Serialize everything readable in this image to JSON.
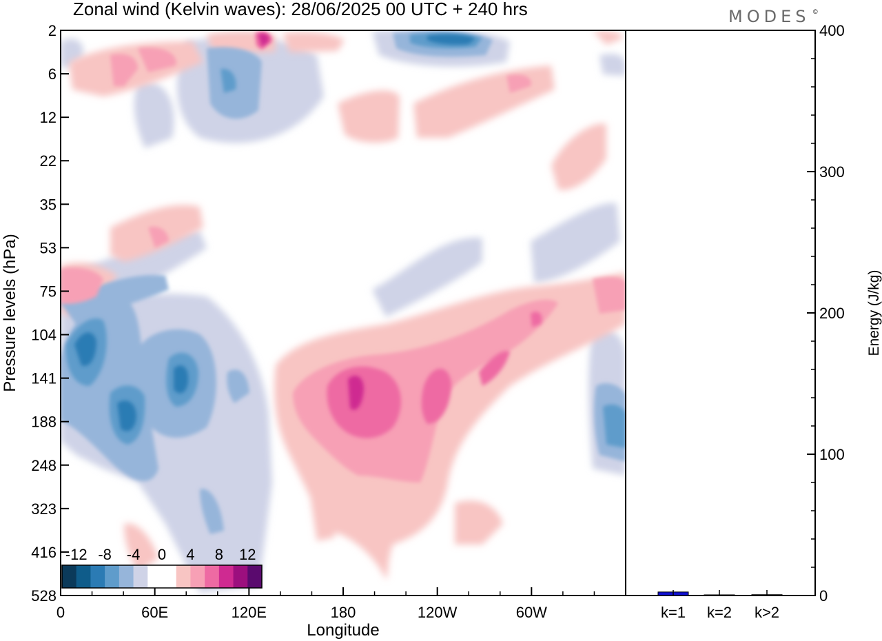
{
  "chart_data": [
    {
      "type": "heatmap",
      "title": "Zonal wind (Kelvin waves):  28/06/2025  00 UTC  + 240 hrs",
      "xlabel": "Longitude",
      "ylabel": "Pressure levels (hPa)",
      "x_ticks": [
        "0",
        "60E",
        "120E",
        "180",
        "120W",
        "60W"
      ],
      "x_tick_degrees": [
        0,
        60,
        120,
        180,
        240,
        300
      ],
      "xlim": [
        0,
        360
      ],
      "y_ticks": [
        "2",
        "6",
        "12",
        "22",
        "35",
        "53",
        "75",
        "104",
        "141",
        "188",
        "248",
        "323",
        "416",
        "528"
      ],
      "colorbar": {
        "labels": [
          "-12",
          "-8",
          "-4",
          "0",
          "4",
          "8",
          "12"
        ],
        "colors": [
          "#0b3a5a",
          "#0f5c8a",
          "#2b7bb4",
          "#5f9ccb",
          "#96b5da",
          "#cfd3e7",
          "#ffffff",
          "#ffffff",
          "#f8c5c3",
          "#f7a0b5",
          "#ee6aa3",
          "#cf2a91",
          "#9c0f7e",
          "#5a0a6e"
        ]
      },
      "features": [
        {
          "lon": 185,
          "level": "141",
          "value": 10
        },
        {
          "lon": 240,
          "level": "141",
          "value": 8
        },
        {
          "lon": 280,
          "level": "104",
          "value": 8
        },
        {
          "lon": 15,
          "level": "104",
          "value": -12
        },
        {
          "lon": 37,
          "level": "141",
          "value": -12
        },
        {
          "lon": 78,
          "level": "141",
          "value": -12
        },
        {
          "lon": 352,
          "level": "188",
          "value": -8
        },
        {
          "lon": 110,
          "level": "12",
          "value": -8
        },
        {
          "lon": 255,
          "level": "2",
          "value": -12
        },
        {
          "lon": 125,
          "level": "2",
          "value": 12
        },
        {
          "lon": 75,
          "level": "2",
          "value": 8
        },
        {
          "lon": 5,
          "level": "75",
          "value": 4
        },
        {
          "lon": 60,
          "level": "53",
          "value": 4
        },
        {
          "lon": 250,
          "level": "12",
          "value": 4
        },
        {
          "lon": 320,
          "level": "35",
          "value": -4
        }
      ]
    },
    {
      "type": "bar",
      "ylabel": "Energy (J/kg)",
      "categories": [
        "k=1",
        "k=2",
        "k>2"
      ],
      "values": [
        2.5,
        0.3,
        0.6
      ],
      "ylim": [
        0,
        400
      ],
      "y_ticks": [
        "0",
        "100",
        "200",
        "300",
        "400"
      ],
      "bar_color": "#1010d0"
    }
  ],
  "brand": "MODES",
  "brand_mark": "©"
}
